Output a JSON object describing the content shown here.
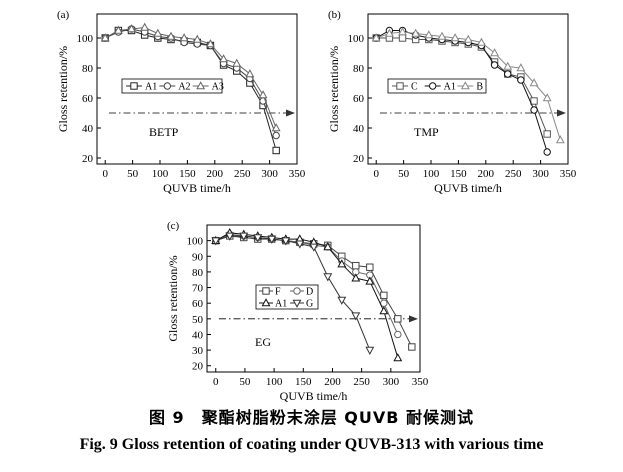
{
  "caption": {
    "cn": "图 9　聚酯树脂粉末涂层 QUVB 耐候测试",
    "en": "Fig. 9   Gloss retention of coating under QUVB-313 with various time"
  },
  "chart_data": [
    {
      "type": "line",
      "panel_label": "(a)",
      "annotation": "BETP",
      "xlabel": "QUVB time/h",
      "ylabel": "Gloss retention/%",
      "xlim": [
        -15,
        350
      ],
      "ylim": [
        16,
        116
      ],
      "xticks": [
        0,
        50,
        100,
        150,
        200,
        250,
        300,
        350
      ],
      "yticks": [
        20,
        40,
        60,
        80,
        100
      ],
      "reference_y": 50,
      "legend": "center-left",
      "series": [
        {
          "name": "A1",
          "marker": "square",
          "color": "#222222",
          "x": [
            0,
            24,
            48,
            72,
            96,
            120,
            144,
            168,
            192,
            216,
            240,
            264,
            288,
            312
          ],
          "y": [
            100,
            105,
            105,
            102,
            100,
            99,
            98,
            97,
            95,
            82,
            78,
            70,
            55,
            25
          ]
        },
        {
          "name": "A2",
          "marker": "circle",
          "color": "#444444",
          "x": [
            0,
            24,
            48,
            72,
            96,
            120,
            144,
            168,
            192,
            216,
            240,
            264,
            288,
            312
          ],
          "y": [
            100,
            104,
            106,
            104,
            101,
            100,
            97,
            96,
            95,
            83,
            80,
            73,
            58,
            35
          ]
        },
        {
          "name": "A3",
          "marker": "triangle",
          "color": "#666666",
          "x": [
            0,
            24,
            48,
            72,
            96,
            120,
            144,
            168,
            192,
            216,
            240,
            264,
            288,
            312
          ],
          "y": [
            100,
            105,
            106,
            107,
            103,
            101,
            100,
            99,
            96,
            86,
            83,
            76,
            62,
            40
          ]
        }
      ]
    },
    {
      "type": "line",
      "panel_label": "(b)",
      "annotation": "TMP",
      "xlabel": "QUVB time/h",
      "ylabel": "Gloss retention/%",
      "xlim": [
        -15,
        350
      ],
      "ylim": [
        16,
        116
      ],
      "xticks": [
        0,
        50,
        100,
        150,
        200,
        250,
        300,
        350
      ],
      "yticks": [
        20,
        40,
        60,
        80,
        100
      ],
      "reference_y": 50,
      "legend": "center-left",
      "series": [
        {
          "name": "C",
          "marker": "square",
          "color": "#555555",
          "x": [
            0,
            24,
            48,
            72,
            96,
            120,
            144,
            168,
            192,
            216,
            240,
            264,
            288,
            312
          ],
          "y": [
            100,
            100,
            100,
            99,
            99,
            98,
            97,
            96,
            94,
            84,
            76,
            74,
            58,
            36
          ]
        },
        {
          "name": "A1",
          "marker": "circle",
          "color": "#111111",
          "x": [
            0,
            24,
            48,
            72,
            96,
            120,
            144,
            168,
            192,
            216,
            240,
            264,
            288,
            312
          ],
          "y": [
            100,
            105,
            105,
            102,
            100,
            99,
            98,
            97,
            95,
            82,
            76,
            72,
            52,
            24
          ]
        },
        {
          "name": "B",
          "marker": "triangle",
          "color": "#888888",
          "x": [
            0,
            24,
            48,
            72,
            96,
            120,
            144,
            168,
            192,
            216,
            240,
            264,
            288,
            312,
            336
          ],
          "y": [
            100,
            103,
            104,
            103,
            102,
            101,
            100,
            99,
            97,
            90,
            81,
            80,
            70,
            60,
            32
          ]
        }
      ]
    },
    {
      "type": "line",
      "panel_label": "(c)",
      "annotation": "EG",
      "xlabel": "QUVB time/h",
      "ylabel": "Gloss retention/%",
      "xlim": [
        -15,
        350
      ],
      "ylim": [
        16,
        110
      ],
      "xticks": [
        0,
        50,
        100,
        150,
        200,
        250,
        300,
        350
      ],
      "yticks": [
        20,
        30,
        40,
        50,
        60,
        70,
        80,
        90,
        100
      ],
      "reference_y": 50,
      "legend": "center-left",
      "series": [
        {
          "name": "F",
          "marker": "square",
          "color": "#444444",
          "x": [
            0,
            24,
            48,
            72,
            96,
            120,
            144,
            168,
            192,
            216,
            240,
            264,
            288,
            312,
            336
          ],
          "y": [
            100,
            103,
            102,
            101,
            101,
            100,
            99,
            98,
            97,
            90,
            84,
            83,
            65,
            50,
            32
          ]
        },
        {
          "name": "D",
          "marker": "circle",
          "color": "#666666",
          "x": [
            0,
            24,
            48,
            72,
            96,
            120,
            144,
            168,
            192,
            216,
            240,
            264,
            288,
            312
          ],
          "y": [
            100,
            104,
            103,
            102,
            101,
            100,
            99,
            97,
            96,
            87,
            80,
            78,
            60,
            40
          ]
        },
        {
          "name": "A1",
          "marker": "triangle",
          "color": "#111111",
          "x": [
            0,
            24,
            48,
            72,
            96,
            120,
            144,
            168,
            192,
            216,
            240,
            264,
            288,
            312
          ],
          "y": [
            100,
            105,
            104,
            103,
            102,
            101,
            101,
            99,
            96,
            85,
            76,
            74,
            55,
            25
          ]
        },
        {
          "name": "G",
          "marker": "triangle-down",
          "color": "#333333",
          "x": [
            0,
            24,
            48,
            72,
            96,
            120,
            144,
            168,
            192,
            216,
            240,
            264
          ],
          "y": [
            100,
            103,
            103,
            102,
            101,
            100,
            98,
            96,
            77,
            62,
            52,
            30
          ]
        }
      ]
    }
  ]
}
